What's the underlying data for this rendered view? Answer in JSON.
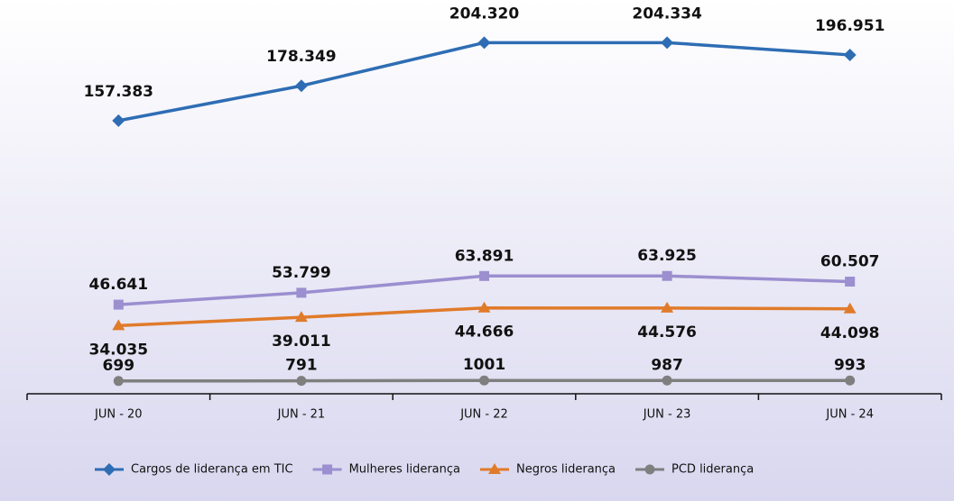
{
  "chart_data": {
    "type": "line",
    "categories": [
      "JUN - 20",
      "JUN - 21",
      "JUN - 22",
      "JUN - 23",
      "JUN - 24"
    ],
    "ylim": [
      -7000,
      230000
    ],
    "legend": "bottom",
    "series": [
      {
        "name": "Cargos de liderança em TIC",
        "color": "#2e6db4",
        "values": [
          157383,
          178349,
          204320,
          204334,
          196951
        ],
        "value_labels": [
          "157.383",
          "178.349",
          "204.320",
          "204.334",
          "196.951"
        ]
      },
      {
        "name": "Mulheres liderança",
        "color": "#9b8fd0",
        "values": [
          46641,
          53799,
          63891,
          63925,
          60507
        ],
        "value_labels": [
          "46.641",
          "53.799",
          "63.891",
          "63.925",
          "60.507"
        ]
      },
      {
        "name": "Negros liderança",
        "color": "#e07b2a",
        "values": [
          34035,
          39011,
          44666,
          44576,
          44098
        ],
        "value_labels": [
          "34.035",
          "39.011",
          "44.666",
          "44.576",
          "44.098"
        ]
      },
      {
        "name": "PCD liderança",
        "color": "#7f7f7f",
        "values": [
          699,
          791,
          1001,
          987,
          993
        ]
      }
    ]
  }
}
